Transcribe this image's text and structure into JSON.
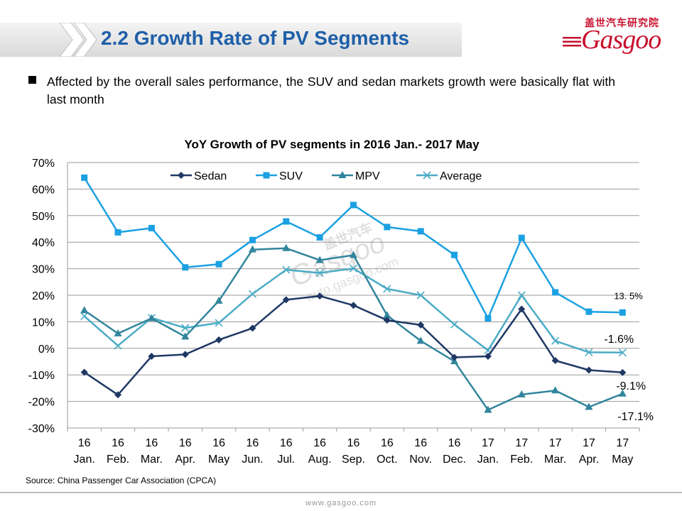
{
  "slide": {
    "title": "2.2 Growth Rate of PV Segments",
    "bullet": "Affected by the overall sales performance, the SUV and sedan markets growth were basically flat with last month",
    "source": "Source: China Passenger Car Association (CPCA)",
    "footer_site": "www.gasgoo.com"
  },
  "logo": {
    "cn_text": "盖世汽车研究院",
    "wordmark": "Gasgoo",
    "brand_color": "#c8102e"
  },
  "watermark": {
    "cn_text": "盖世汽车",
    "wordmark": "Gasgoo",
    "url": "auto.gasgoo.com"
  },
  "chart_data": {
    "type": "line",
    "title": "YoY Growth of PV segments in 2016 Jan.- 2017 May",
    "categories": [
      [
        "16",
        "Jan."
      ],
      [
        "16",
        "Feb."
      ],
      [
        "16",
        "Mar."
      ],
      [
        "16",
        "Apr."
      ],
      [
        "16",
        "May"
      ],
      [
        "16",
        "Jun."
      ],
      [
        "16",
        "Jul."
      ],
      [
        "16",
        "Aug."
      ],
      [
        "16",
        "Sep."
      ],
      [
        "16",
        "Oct."
      ],
      [
        "16",
        "Nov."
      ],
      [
        "16",
        "Dec."
      ],
      [
        "17",
        "Jan."
      ],
      [
        "17",
        "Feb."
      ],
      [
        "17",
        "Mar."
      ],
      [
        "17",
        "Apr."
      ],
      [
        "17",
        "May"
      ]
    ],
    "y_ticks": [
      "70%",
      "60%",
      "50%",
      "40%",
      "30%",
      "20%",
      "10%",
      "0%",
      "-10%",
      "-20%",
      "-30%"
    ],
    "ylim": [
      -30,
      70
    ],
    "grid": true,
    "legend_position": "top",
    "series": [
      {
        "name": "Sedan",
        "marker": "diamond",
        "color": "#1f3864",
        "values": [
          -9,
          -17.5,
          -3,
          -2.3,
          3.2,
          7.6,
          18.3,
          19.7,
          16.2,
          10.6,
          8.8,
          -3.4,
          -3,
          14.8,
          -4.6,
          -8.2,
          -9.1
        ]
      },
      {
        "name": "SUV",
        "marker": "square",
        "color": "#1ba1e2",
        "values": [
          64.3,
          43.7,
          45.3,
          30.5,
          31.7,
          40.8,
          47.8,
          41.8,
          54,
          45.7,
          44.1,
          35.2,
          11.3,
          41.6,
          21.1,
          13.8,
          13.5
        ]
      },
      {
        "name": "MPV",
        "marker": "triangle",
        "color": "#31859c",
        "values": [
          14.3,
          5.6,
          11.3,
          4.4,
          17.9,
          37.2,
          37.7,
          33.2,
          35.1,
          12.4,
          2.8,
          -4.9,
          -23.2,
          -17.4,
          -15.9,
          -22.1,
          -17.1
        ]
      },
      {
        "name": "Average",
        "marker": "x",
        "color": "#4bacc6",
        "values": [
          12.1,
          1,
          11.5,
          7.7,
          9.6,
          20.5,
          29.6,
          28.4,
          30.1,
          22.4,
          20,
          9,
          -0.8,
          20,
          2.8,
          -1.5,
          -1.6
        ]
      }
    ],
    "end_labels": [
      {
        "series": "SUV",
        "text": "13. 5%"
      },
      {
        "series": "Average",
        "text": "-1.6%"
      },
      {
        "series": "Sedan",
        "text": "-9.1%"
      },
      {
        "series": "MPV",
        "text": "-17.1%"
      }
    ]
  }
}
